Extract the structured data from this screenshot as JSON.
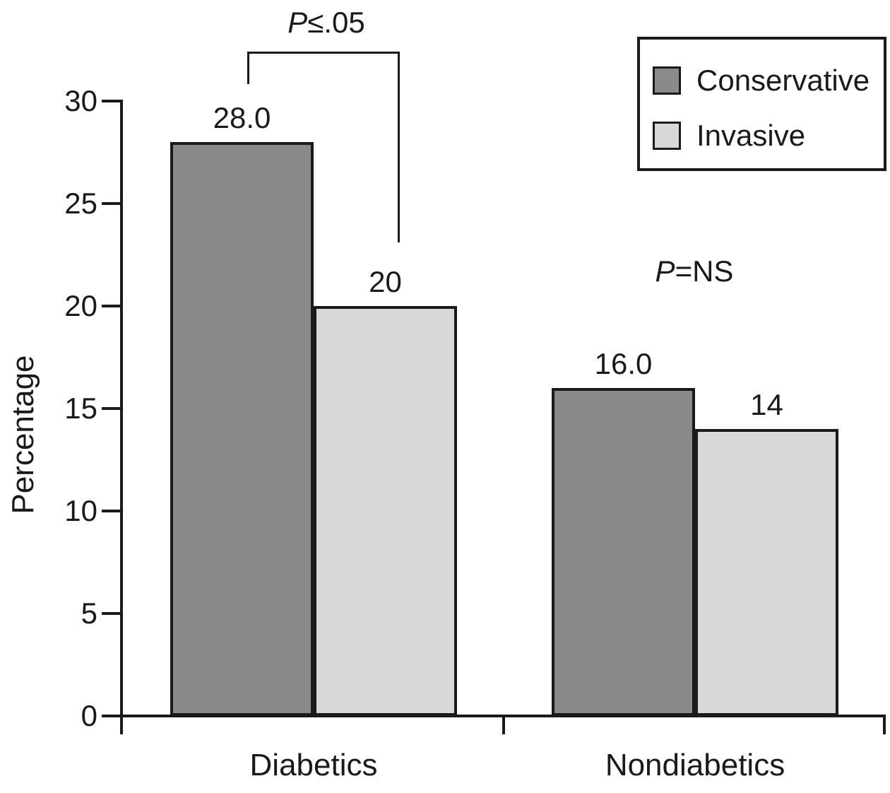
{
  "chart_data": {
    "type": "bar",
    "title": "",
    "xlabel": "",
    "ylabel": "Percentage",
    "ylim": [
      0,
      30
    ],
    "yticks": [
      0,
      5,
      10,
      15,
      20,
      25,
      30
    ],
    "grid": false,
    "legend_position": "top-right",
    "axis_color": "#1a1a1a",
    "background": "#ffffff",
    "categories": [
      "Diabetics",
      "Nondiabetics"
    ],
    "series": [
      {
        "name": "Conservative",
        "color": "#8a8a8a",
        "values": [
          28.0,
          16.0
        ],
        "value_labels": [
          "28.0",
          "16.0"
        ]
      },
      {
        "name": "Invasive",
        "color": "#d8d8d8",
        "values": [
          20,
          14
        ],
        "value_labels": [
          "20",
          "14"
        ]
      }
    ],
    "annotations": [
      {
        "prefix": "P",
        "suffix": "≤.05",
        "group": "Diabetics",
        "style": "bracket"
      },
      {
        "prefix": "P",
        "suffix": "=NS",
        "group": "Nondiabetics",
        "style": "text"
      }
    ]
  }
}
